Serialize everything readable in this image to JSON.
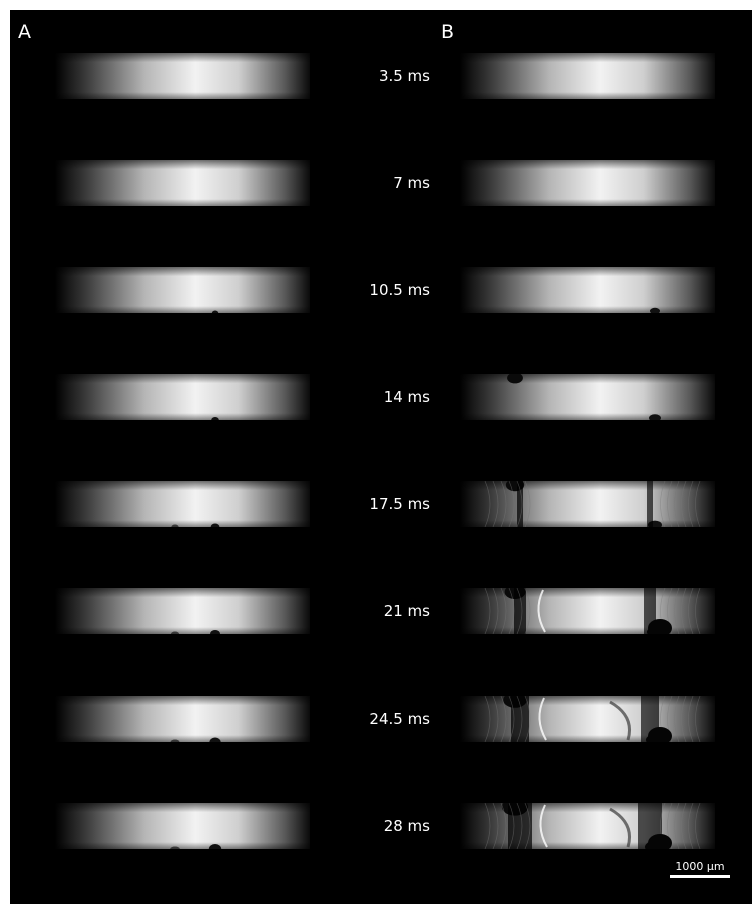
{
  "panels": {
    "left_label": "A",
    "right_label": "B"
  },
  "rows": [
    {
      "time": "3.5 ms"
    },
    {
      "time": "7 ms"
    },
    {
      "time": "10.5 ms"
    },
    {
      "time": "14 ms"
    },
    {
      "time": "17.5 ms"
    },
    {
      "time": "21 ms"
    },
    {
      "time": "24.5 ms"
    },
    {
      "time": "28 ms"
    }
  ],
  "scale_bar": {
    "label": "1000 µm"
  },
  "colors": {
    "background": "#000000",
    "text": "#ffffff",
    "signal": "#ffffff"
  }
}
